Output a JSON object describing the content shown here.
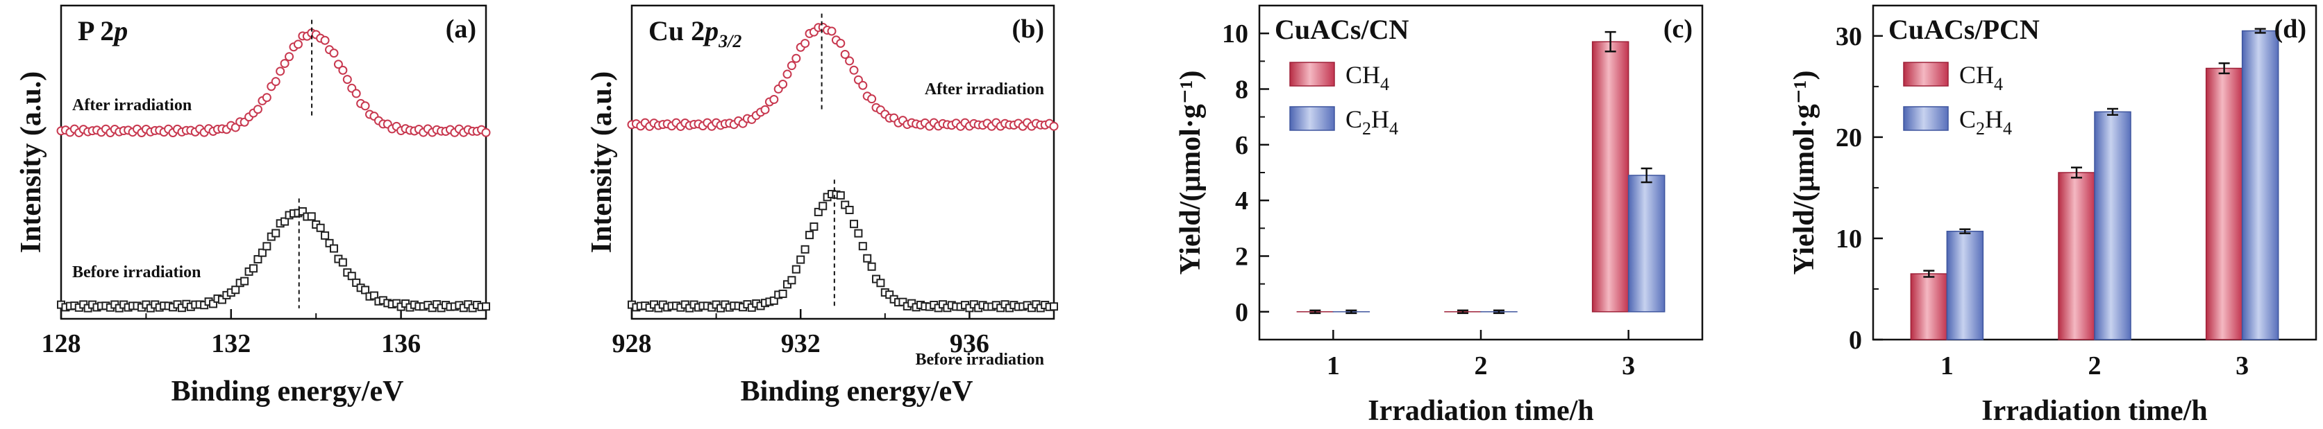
{
  "chart_data": [
    {
      "type": "scatter",
      "panel_tag": "(a)",
      "title_main": "P 2",
      "title_italic": "p",
      "title_sub": "",
      "xlabel": "Binding energy/eV",
      "ylabel": "Intensity (a.u.)",
      "xlim": [
        128,
        138
      ],
      "xticks": [
        "128",
        "132",
        "136"
      ],
      "tick_values": [
        128,
        132,
        136
      ],
      "y_numbers_shown": false,
      "series": [
        {
          "name": "After irradiation",
          "marker": "circle",
          "color": "#c8384f",
          "peak": 133.9,
          "baseline": 0.6,
          "amplitude": 0.31,
          "width": 1.05
        },
        {
          "name": "Before irradiation",
          "marker": "square",
          "color": "#222222",
          "peak": 133.6,
          "baseline": 0.04,
          "amplitude": 0.3,
          "width": 1.15
        }
      ],
      "peak_markers": [
        133.9,
        133.6
      ]
    },
    {
      "type": "scatter",
      "panel_tag": "(b)",
      "title_main": "Cu 2",
      "title_italic": "p",
      "title_sub": "3/2",
      "xlabel": "Binding energy/eV",
      "ylabel": "Intensity (a.u.)",
      "xlim": [
        928,
        938
      ],
      "xticks": [
        "928",
        "932",
        "936"
      ],
      "tick_values": [
        928,
        932,
        936
      ],
      "y_numbers_shown": false,
      "series": [
        {
          "name": "After irradiation",
          "marker": "circle",
          "color": "#c8384f",
          "peak": 932.5,
          "baseline": 0.62,
          "amplitude": 0.31,
          "width": 1.0
        },
        {
          "name": "Before irradiation",
          "marker": "square",
          "color": "#222222",
          "peak": 932.8,
          "baseline": 0.04,
          "amplitude": 0.36,
          "width": 0.85
        }
      ],
      "peak_markers": [
        932.5,
        932.8
      ]
    },
    {
      "type": "bar",
      "panel_tag": "(c)",
      "title": "CuACs/CN",
      "xlabel": "Irradiation time/h",
      "ylabel": "Yield/(μmol·g⁻¹)",
      "ylim": [
        -1,
        11
      ],
      "yticks": [
        0,
        2,
        4,
        6,
        8,
        10
      ],
      "categories": [
        "1",
        "2",
        "3"
      ],
      "series": [
        {
          "name_main": "CH",
          "name_sub": "4",
          "values": [
            0,
            0,
            9.7
          ],
          "errors": [
            0.05,
            0.05,
            0.35
          ],
          "color": "#d94a62"
        },
        {
          "name_main": "C",
          "name_mid": "2",
          "name_tail": "H",
          "name_sub": "4",
          "values": [
            0,
            0,
            4.9
          ],
          "errors": [
            0.05,
            0.05,
            0.25
          ],
          "color": "#6f86c9"
        }
      ]
    },
    {
      "type": "bar",
      "panel_tag": "(d)",
      "title": "CuACs/PCN",
      "xlabel": "Irradiation time/h",
      "ylabel": "Yield/(μmol·g⁻¹)",
      "ylim": [
        0,
        33
      ],
      "yticks": [
        0,
        10,
        20,
        30
      ],
      "categories": [
        "1",
        "2",
        "3"
      ],
      "series": [
        {
          "name_main": "CH",
          "name_sub": "4",
          "values": [
            6.5,
            16.5,
            26.8
          ],
          "errors": [
            0.3,
            0.5,
            0.5
          ],
          "color": "#d94a62"
        },
        {
          "name_main": "C",
          "name_mid": "2",
          "name_tail": "H",
          "name_sub": "4",
          "values": [
            10.7,
            22.5,
            30.5
          ],
          "errors": [
            0.2,
            0.3,
            0.2
          ],
          "color": "#6f86c9"
        }
      ]
    }
  ]
}
